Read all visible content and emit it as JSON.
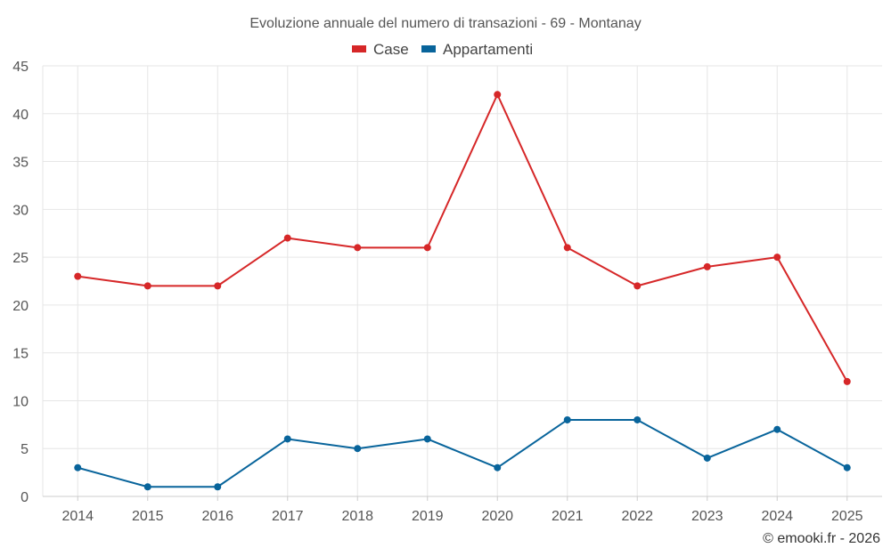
{
  "chart_data": {
    "type": "line",
    "title": "Evoluzione annuale del numero di transazioni - 69 - Montanay",
    "xlabel": "",
    "ylabel": "",
    "categories": [
      "2014",
      "2015",
      "2016",
      "2017",
      "2018",
      "2019",
      "2020",
      "2021",
      "2022",
      "2023",
      "2024",
      "2025"
    ],
    "ylim": [
      0,
      45
    ],
    "yticks": [
      0,
      5,
      10,
      15,
      20,
      25,
      30,
      35,
      40,
      45
    ],
    "grid": true,
    "legend_position": "top-center",
    "series": [
      {
        "name": "Case",
        "color": "#d62728",
        "values": [
          23,
          22,
          22,
          27,
          26,
          26,
          42,
          26,
          22,
          24,
          25,
          12
        ]
      },
      {
        "name": "Appartamenti",
        "color": "#08649b",
        "values": [
          3,
          1,
          1,
          6,
          5,
          6,
          3,
          8,
          8,
          4,
          7,
          3
        ]
      }
    ]
  },
  "credit": "© emooki.fr - 2026"
}
